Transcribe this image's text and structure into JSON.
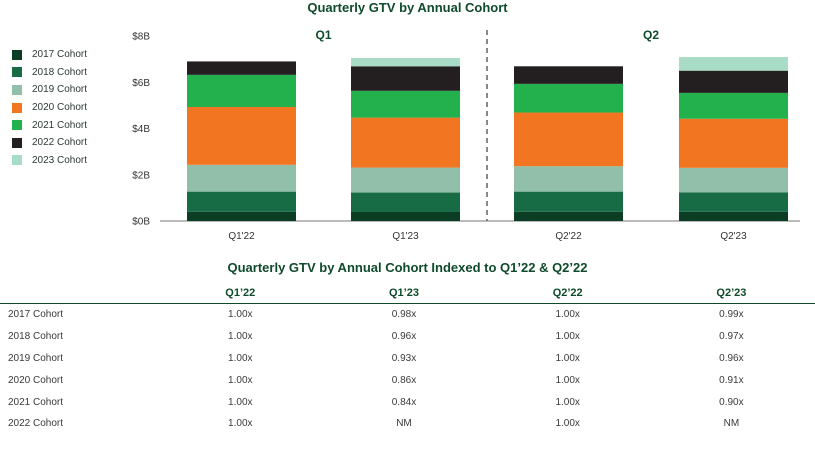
{
  "chart_data": {
    "type": "bar",
    "stacked": true,
    "title": "Quarterly GTV by Annual Cohort",
    "categories": [
      "Q1'22",
      "Q1'23",
      "Q2'22",
      "Q2'23"
    ],
    "groups": [
      {
        "label": "Q1",
        "categories": [
          "Q1'22",
          "Q1'23"
        ]
      },
      {
        "label": "Q2",
        "categories": [
          "Q2'22",
          "Q2'23"
        ]
      }
    ],
    "ylim": [
      0,
      8
    ],
    "yticks": [
      {
        "value": 0,
        "label": "$0B"
      },
      {
        "value": 2,
        "label": "$2B"
      },
      {
        "value": 4,
        "label": "$4B"
      },
      {
        "value": 6,
        "label": "$6B"
      },
      {
        "value": 8,
        "label": "$8B"
      }
    ],
    "series": [
      {
        "name": "2017 Cohort",
        "color": "#0b3d24",
        "values": [
          0.4,
          0.39,
          0.4,
          0.4
        ]
      },
      {
        "name": "2018 Cohort",
        "color": "#176b45",
        "values": [
          0.87,
          0.84,
          0.87,
          0.84
        ]
      },
      {
        "name": "2019 Cohort",
        "color": "#91bfa9",
        "values": [
          1.16,
          1.08,
          1.1,
          1.06
        ]
      },
      {
        "name": "2020 Cohort",
        "color": "#f27522",
        "values": [
          2.5,
          2.16,
          2.32,
          2.12
        ]
      },
      {
        "name": "2021 Cohort",
        "color": "#22b14c",
        "values": [
          1.39,
          1.16,
          1.24,
          1.12
        ]
      },
      {
        "name": "2022 Cohort",
        "color": "#231f20",
        "values": [
          0.58,
          1.06,
          0.76,
          0.96
        ]
      },
      {
        "name": "2023 Cohort",
        "color": "#a8dcc6",
        "values": [
          0.0,
          0.36,
          0.0,
          0.59
        ]
      }
    ]
  },
  "table": {
    "title": "Quarterly GTV by Annual Cohort Indexed to Q1’22 & Q2’22",
    "headers": [
      "",
      "Q1’22",
      "Q1’23",
      "Q2’22",
      "Q2’23"
    ],
    "rows": [
      {
        "label": "2017 Cohort",
        "values": [
          "1.00x",
          "0.98x",
          "1.00x",
          "0.99x"
        ]
      },
      {
        "label": "2018 Cohort",
        "values": [
          "1.00x",
          "0.96x",
          "1.00x",
          "0.97x"
        ]
      },
      {
        "label": "2019 Cohort",
        "values": [
          "1.00x",
          "0.93x",
          "1.00x",
          "0.96x"
        ]
      },
      {
        "label": "2020 Cohort",
        "values": [
          "1.00x",
          "0.86x",
          "1.00x",
          "0.91x"
        ]
      },
      {
        "label": "2021 Cohort",
        "values": [
          "1.00x",
          "0.84x",
          "1.00x",
          "0.90x"
        ]
      },
      {
        "label": "2022 Cohort",
        "values": [
          "1.00x",
          "NM",
          "1.00x",
          "NM"
        ]
      }
    ]
  }
}
